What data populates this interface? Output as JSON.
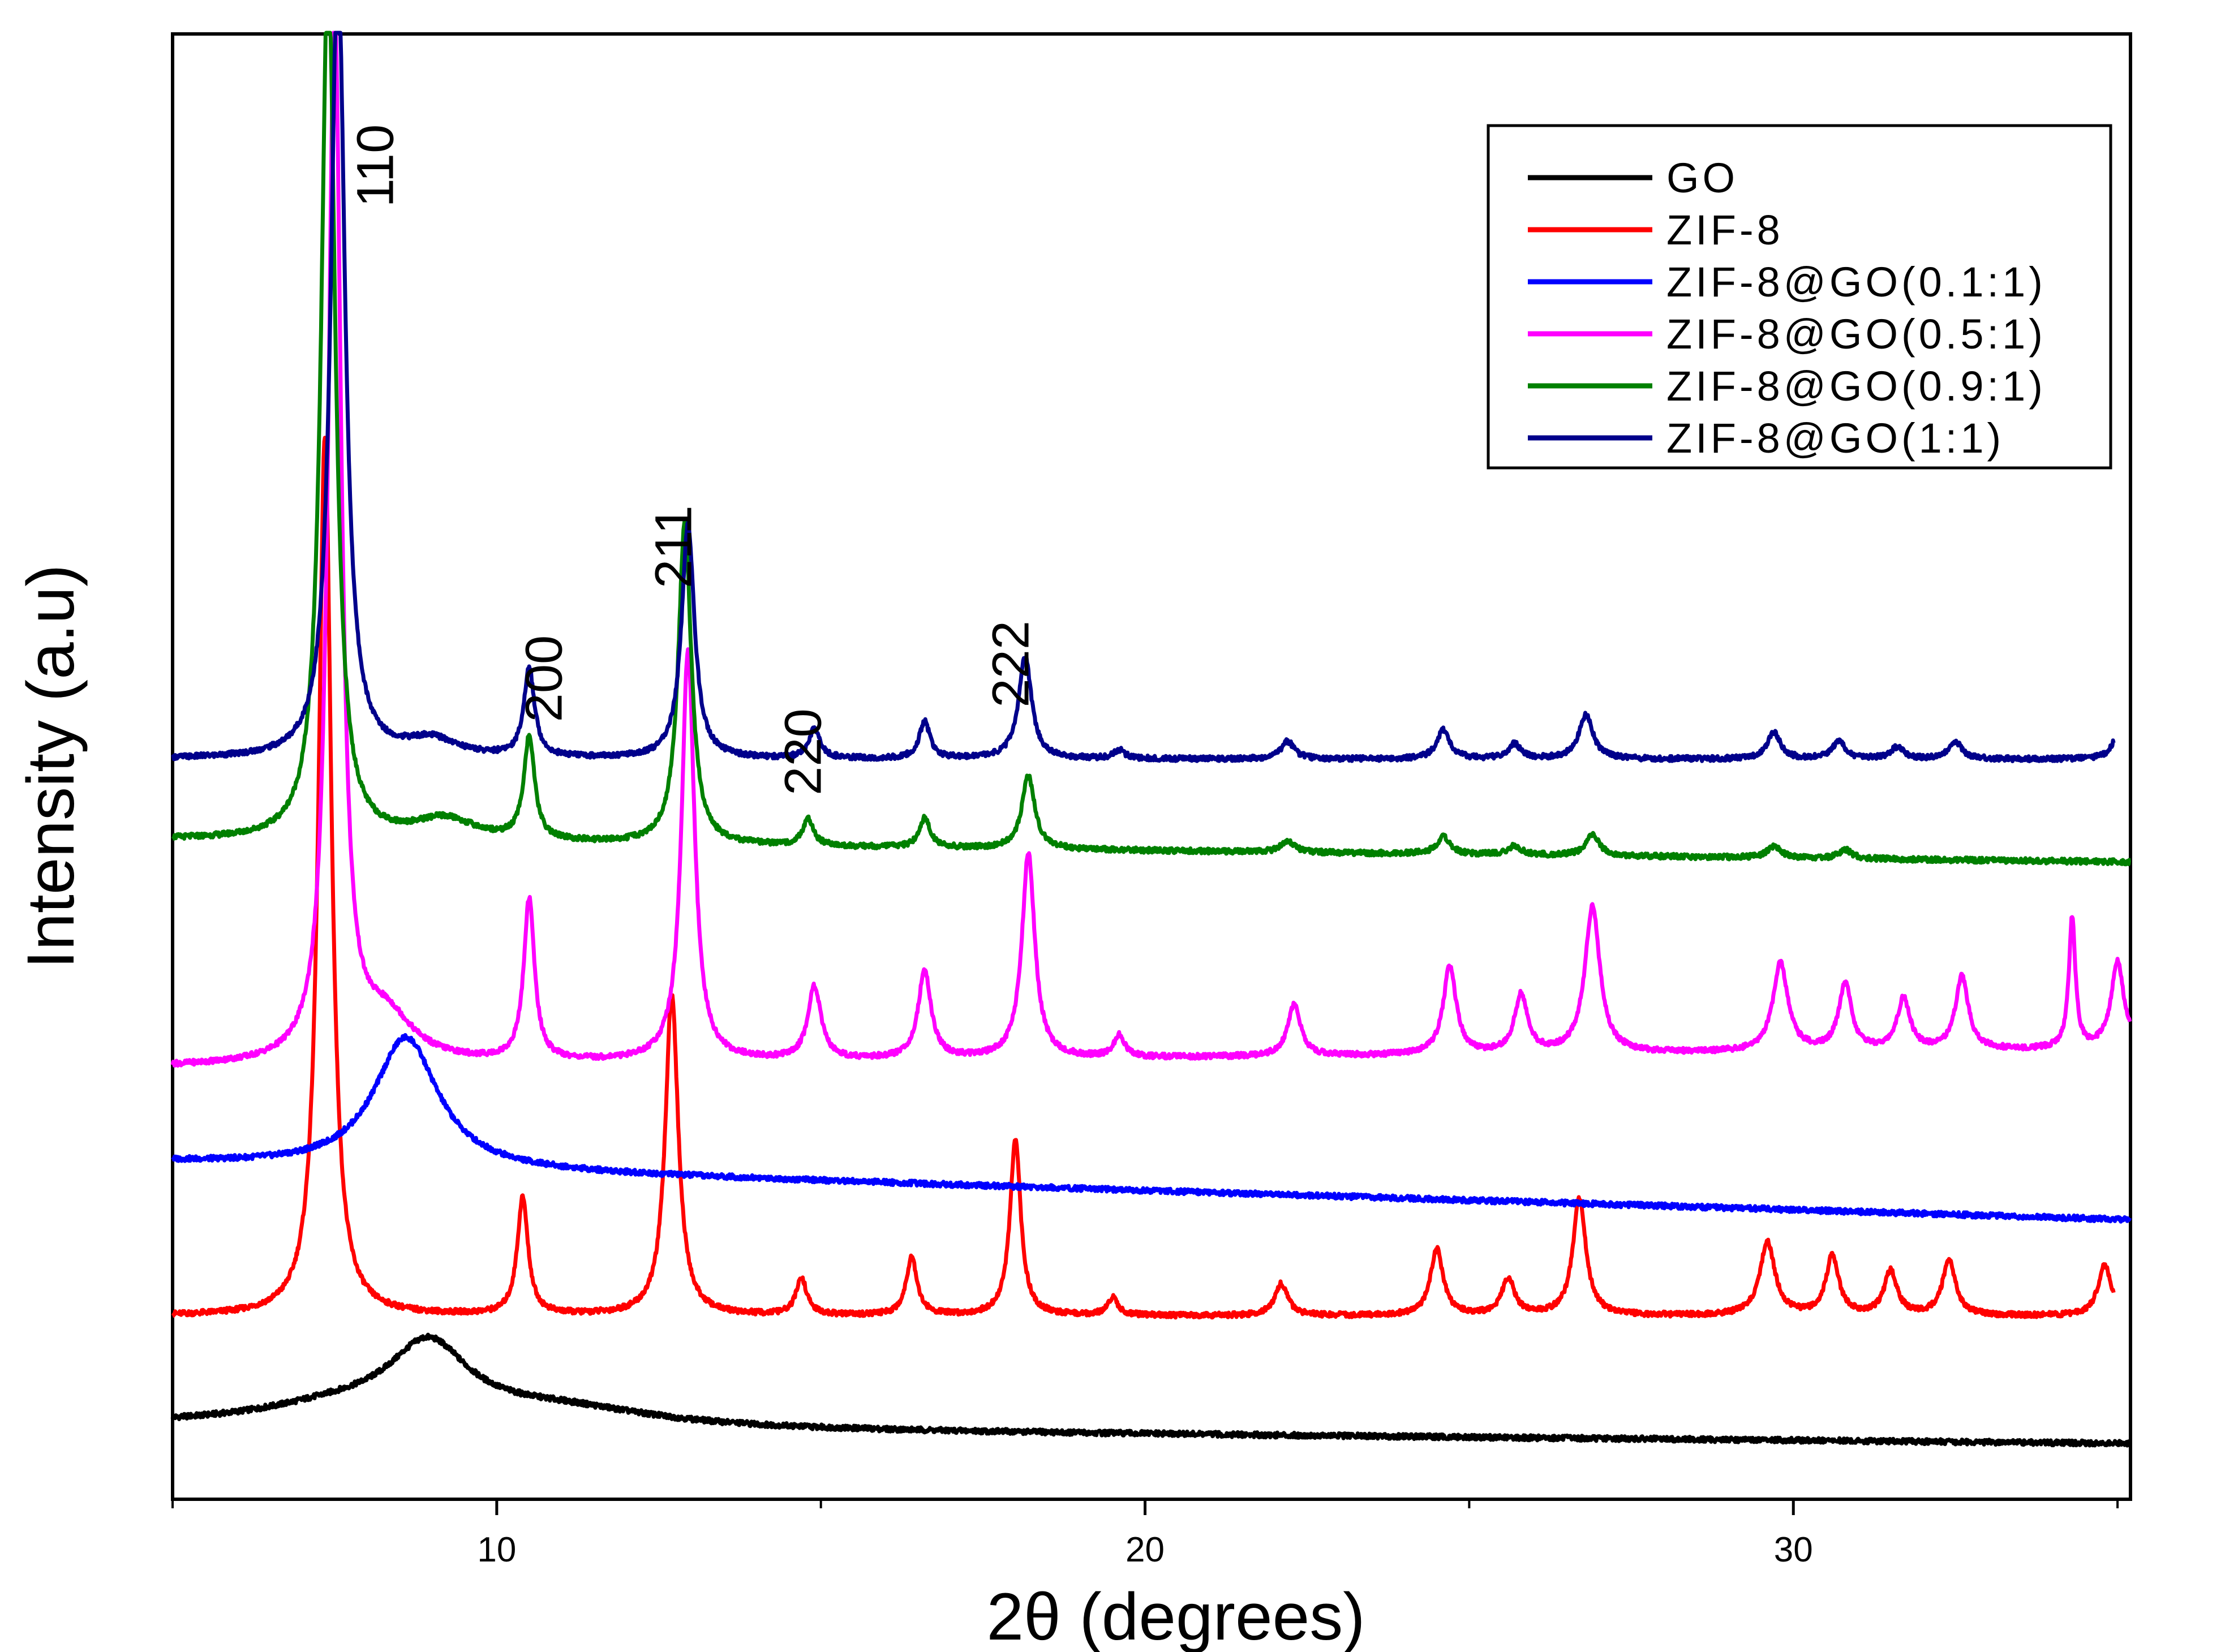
{
  "chart_data": {
    "type": "line",
    "title": "",
    "xlabel": "2θ (degrees)",
    "ylabel": "Intensity (a.u)",
    "xlim": [
      5,
      35.2
    ],
    "ylim": [
      0,
      100
    ],
    "x_ticks": [
      10,
      20,
      30
    ],
    "y_ticks": [],
    "legend_position": "top-right",
    "peak_labels": [
      {
        "text": "110",
        "x": 8.4,
        "y": 91
      },
      {
        "text": "200",
        "x": 11.0,
        "y": 56
      },
      {
        "text": "211",
        "x": 13.0,
        "y": 65
      },
      {
        "text": "220",
        "x": 15.0,
        "y": 51
      },
      {
        "text": "222",
        "x": 18.2,
        "y": 57
      }
    ],
    "series": [
      {
        "name": "GO",
        "color": "#000000",
        "baseline": 5.0,
        "peaks": [
          {
            "x": 8.95,
            "h": 5.0,
            "w": 0.75
          },
          {
            "x": 7.6,
            "h": 1.2,
            "w": 1.6
          },
          {
            "x": 11.0,
            "h": 1.2,
            "w": 1.8
          }
        ],
        "slope": -0.04
      },
      {
        "name": "ZIF-8",
        "color": "#ff0000",
        "baseline": 12.5,
        "peaks": [
          {
            "x": 7.35,
            "h": 60.0,
            "w": 0.12
          },
          {
            "x": 10.4,
            "h": 8.0,
            "w": 0.1
          },
          {
            "x": 12.7,
            "h": 22.0,
            "w": 0.12
          },
          {
            "x": 14.7,
            "h": 2.5,
            "w": 0.1
          },
          {
            "x": 16.4,
            "h": 4.0,
            "w": 0.1
          },
          {
            "x": 18.0,
            "h": 12.0,
            "w": 0.1
          },
          {
            "x": 19.5,
            "h": 1.2,
            "w": 0.1
          },
          {
            "x": 22.1,
            "h": 2.2,
            "w": 0.12
          },
          {
            "x": 24.5,
            "h": 4.5,
            "w": 0.12
          },
          {
            "x": 25.6,
            "h": 2.5,
            "w": 0.12
          },
          {
            "x": 26.7,
            "h": 8.0,
            "w": 0.12
          },
          {
            "x": 29.6,
            "h": 5.0,
            "w": 0.14
          },
          {
            "x": 30.6,
            "h": 4.0,
            "w": 0.12
          },
          {
            "x": 31.5,
            "h": 3.0,
            "w": 0.12
          },
          {
            "x": 32.4,
            "h": 3.8,
            "w": 0.12
          },
          {
            "x": 34.8,
            "h": 3.5,
            "w": 0.12
          }
        ],
        "slope": 0
      },
      {
        "name": "ZIF-8@GO(0.1:1)",
        "color": "#0000ff",
        "baseline": 23.0,
        "peaks": [
          {
            "x": 8.6,
            "h": 9.0,
            "w": 0.6
          }
        ],
        "slope": -0.13
      },
      {
        "name": "ZIF-8@GO(0.5:1)",
        "color": "#ff00ff",
        "baseline": 29.5,
        "peaks": [
          {
            "x": 7.5,
            "h": 72.0,
            "w": 0.12
          },
          {
            "x": 8.3,
            "h": 3.0,
            "w": 0.5
          },
          {
            "x": 10.5,
            "h": 11.0,
            "w": 0.1
          },
          {
            "x": 12.95,
            "h": 28.0,
            "w": 0.12
          },
          {
            "x": 14.9,
            "h": 5.0,
            "w": 0.12
          },
          {
            "x": 16.6,
            "h": 6.0,
            "w": 0.12
          },
          {
            "x": 18.2,
            "h": 14.0,
            "w": 0.12
          },
          {
            "x": 19.6,
            "h": 1.5,
            "w": 0.1
          },
          {
            "x": 22.3,
            "h": 3.5,
            "w": 0.12
          },
          {
            "x": 24.7,
            "h": 6.0,
            "w": 0.12
          },
          {
            "x": 25.8,
            "h": 4.0,
            "w": 0.12
          },
          {
            "x": 26.9,
            "h": 10.0,
            "w": 0.14
          },
          {
            "x": 29.8,
            "h": 6.0,
            "w": 0.14
          },
          {
            "x": 30.8,
            "h": 4.5,
            "w": 0.12
          },
          {
            "x": 31.7,
            "h": 3.5,
            "w": 0.12
          },
          {
            "x": 32.6,
            "h": 5.0,
            "w": 0.12
          },
          {
            "x": 34.3,
            "h": 9.0,
            "w": 0.06
          },
          {
            "x": 35.0,
            "h": 6.0,
            "w": 0.12
          }
        ],
        "slope": 0.04
      },
      {
        "name": "ZIF-8@GO(0.9:1)",
        "color": "#008000",
        "baseline": 45.0,
        "peaks": [
          {
            "x": 7.4,
            "h": 60.0,
            "w": 0.13
          },
          {
            "x": 9.2,
            "h": 1.5,
            "w": 0.6
          },
          {
            "x": 10.5,
            "h": 7.0,
            "w": 0.1
          },
          {
            "x": 12.9,
            "h": 22.0,
            "w": 0.12
          },
          {
            "x": 14.8,
            "h": 1.8,
            "w": 0.1
          },
          {
            "x": 16.6,
            "h": 2.0,
            "w": 0.1
          },
          {
            "x": 18.2,
            "h": 5.0,
            "w": 0.12
          },
          {
            "x": 22.2,
            "h": 0.8,
            "w": 0.12
          },
          {
            "x": 24.6,
            "h": 1.2,
            "w": 0.12
          },
          {
            "x": 25.7,
            "h": 0.6,
            "w": 0.12
          },
          {
            "x": 26.9,
            "h": 1.5,
            "w": 0.12
          },
          {
            "x": 29.7,
            "h": 0.8,
            "w": 0.12
          },
          {
            "x": 30.8,
            "h": 0.6,
            "w": 0.12
          }
        ],
        "slope": -0.05
      },
      {
        "name": "ZIF-8@GO(1:1)",
        "color": "#00008b",
        "baseline": 50.5,
        "peaks": [
          {
            "x": 7.55,
            "h": 55.0,
            "w": 0.13
          },
          {
            "x": 9.0,
            "h": 1.2,
            "w": 0.5
          },
          {
            "x": 10.5,
            "h": 6.0,
            "w": 0.1
          },
          {
            "x": 12.95,
            "h": 16.0,
            "w": 0.12
          },
          {
            "x": 14.9,
            "h": 2.0,
            "w": 0.1
          },
          {
            "x": 16.6,
            "h": 2.5,
            "w": 0.1
          },
          {
            "x": 18.15,
            "h": 7.0,
            "w": 0.12
          },
          {
            "x": 19.6,
            "h": 0.6,
            "w": 0.1
          },
          {
            "x": 22.2,
            "h": 1.2,
            "w": 0.12
          },
          {
            "x": 24.6,
            "h": 2.0,
            "w": 0.12
          },
          {
            "x": 25.7,
            "h": 1.0,
            "w": 0.12
          },
          {
            "x": 26.8,
            "h": 3.0,
            "w": 0.13
          },
          {
            "x": 29.7,
            "h": 1.8,
            "w": 0.12
          },
          {
            "x": 30.7,
            "h": 1.2,
            "w": 0.12
          },
          {
            "x": 31.6,
            "h": 0.8,
            "w": 0.12
          },
          {
            "x": 32.5,
            "h": 1.2,
            "w": 0.12
          },
          {
            "x": 35.0,
            "h": 1.5,
            "w": 0.12
          }
        ],
        "slope": 0
      }
    ]
  }
}
